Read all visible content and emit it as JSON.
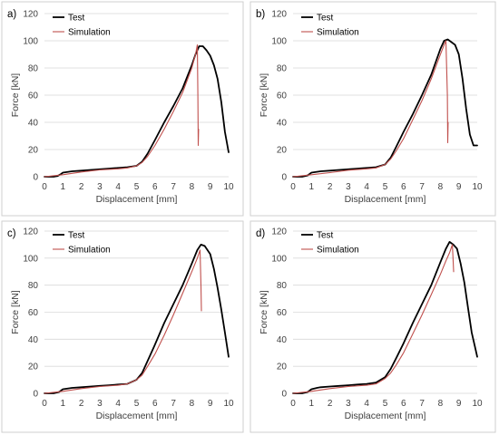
{
  "chart_data": [
    {
      "type": "line",
      "panel_label": "a)",
      "xlabel": "Displacement [mm]",
      "ylabel": "Force [kN]",
      "xlim": [
        0,
        10
      ],
      "ylim": [
        0,
        120
      ],
      "xticks": [
        0,
        1,
        2,
        3,
        4,
        5,
        6,
        7,
        8,
        9,
        10
      ],
      "yticks": [
        0,
        20,
        40,
        60,
        80,
        100,
        120
      ],
      "grid": "horizontal",
      "legend_position": "top-left",
      "series": [
        {
          "name": "Test",
          "color": "#000000",
          "x": [
            0,
            0.5,
            0.7,
            0.9,
            1.0,
            1.5,
            2.0,
            2.5,
            3.0,
            3.5,
            4.0,
            4.5,
            5.0,
            5.3,
            5.6,
            6.0,
            6.5,
            7.0,
            7.5,
            8.0,
            8.2,
            8.4,
            8.6,
            8.8,
            9.0,
            9.2,
            9.4,
            9.6,
            9.8,
            10.0
          ],
          "y": [
            0,
            0,
            0.5,
            2,
            3,
            4,
            4.5,
            5,
            5.5,
            6,
            6.5,
            7,
            8,
            11,
            17,
            27,
            40,
            52,
            65,
            82,
            90,
            96,
            96,
            93,
            89,
            82,
            72,
            55,
            33,
            18
          ]
        },
        {
          "name": "Simulation",
          "color": "#c0504d",
          "x": [
            0,
            1.0,
            2.0,
            3.0,
            4.0,
            4.5,
            5.0,
            5.3,
            5.6,
            6.0,
            6.5,
            7.0,
            7.5,
            8.0,
            8.2,
            8.3,
            8.33,
            8.35,
            8.37
          ],
          "y": [
            0,
            1.5,
            3.5,
            5,
            5.8,
            6.5,
            8,
            10.5,
            15,
            23,
            35,
            48,
            62,
            80,
            90,
            97,
            60,
            23,
            35
          ]
        }
      ]
    },
    {
      "type": "line",
      "panel_label": "b)",
      "xlabel": "Displacement [mm]",
      "ylabel": "Force [kN]",
      "xlim": [
        0,
        10
      ],
      "ylim": [
        0,
        120
      ],
      "xticks": [
        0,
        1,
        2,
        3,
        4,
        5,
        6,
        7,
        8,
        9,
        10
      ],
      "yticks": [
        0,
        20,
        40,
        60,
        80,
        100,
        120
      ],
      "grid": "horizontal",
      "legend_position": "top-left",
      "series": [
        {
          "name": "Test",
          "color": "#000000",
          "x": [
            0,
            0.5,
            0.8,
            1.0,
            1.5,
            2.0,
            2.5,
            3.0,
            3.5,
            4.0,
            4.5,
            5.0,
            5.3,
            5.6,
            6.0,
            6.5,
            7.0,
            7.5,
            8.0,
            8.2,
            8.4,
            8.6,
            8.8,
            9.0,
            9.2,
            9.4,
            9.6,
            9.8,
            10.0
          ],
          "y": [
            0,
            0,
            1,
            3,
            4,
            4.5,
            5,
            5.5,
            6,
            6.5,
            7,
            9,
            14,
            22,
            33,
            46,
            60,
            75,
            94,
            100,
            101,
            99,
            97,
            90,
            72,
            50,
            31,
            23,
            23
          ]
        },
        {
          "name": "Simulation",
          "color": "#c0504d",
          "x": [
            0,
            1.0,
            2.0,
            3.0,
            4.0,
            4.5,
            5.0,
            5.3,
            5.6,
            6.0,
            6.5,
            7.0,
            7.5,
            8.0,
            8.2,
            8.3,
            8.38,
            8.4,
            8.42
          ],
          "y": [
            0,
            1.5,
            3,
            4.8,
            5.8,
            6.5,
            9,
            13,
            19,
            28,
            42,
            56,
            72,
            90,
            97,
            100,
            60,
            25,
            40
          ]
        }
      ]
    },
    {
      "type": "line",
      "panel_label": "c)",
      "xlabel": "Displacement [mm]",
      "ylabel": "Force [kN]",
      "xlim": [
        0,
        10
      ],
      "ylim": [
        0,
        120
      ],
      "xticks": [
        0,
        1,
        2,
        3,
        4,
        5,
        6,
        7,
        8,
        9,
        10
      ],
      "yticks": [
        0,
        20,
        40,
        60,
        80,
        100,
        120
      ],
      "grid": "horizontal",
      "legend_position": "top-left",
      "series": [
        {
          "name": "Test",
          "color": "#000000",
          "x": [
            0,
            0.5,
            0.8,
            1.0,
            1.5,
            2.0,
            2.5,
            3.0,
            3.5,
            4.0,
            4.5,
            5.0,
            5.3,
            5.6,
            6.0,
            6.5,
            7.0,
            7.5,
            8.0,
            8.3,
            8.5,
            8.7,
            9.0,
            9.2,
            9.4,
            9.6,
            9.8,
            10.0
          ],
          "y": [
            0,
            0,
            1,
            3,
            4,
            4.5,
            5,
            5.5,
            6,
            6.5,
            7,
            10,
            15,
            24,
            36,
            52,
            66,
            80,
            96,
            106,
            110,
            109,
            103,
            92,
            78,
            62,
            45,
            27
          ]
        },
        {
          "name": "Simulation",
          "color": "#c0504d",
          "x": [
            0,
            1.0,
            2.0,
            3.0,
            4.0,
            4.5,
            5.0,
            5.3,
            5.6,
            6.0,
            6.5,
            7.0,
            7.5,
            8.0,
            8.3,
            8.45,
            8.5,
            8.52
          ],
          "y": [
            0,
            1.5,
            3.5,
            5,
            6,
            7,
            10,
            13.5,
            20,
            29,
            43,
            58,
            74,
            90,
            100,
            106,
            80,
            61
          ]
        }
      ]
    },
    {
      "type": "line",
      "panel_label": "d)",
      "xlabel": "Displacement [mm]",
      "ylabel": "Force [kN]",
      "xlim": [
        0,
        10
      ],
      "ylim": [
        0,
        120
      ],
      "xticks": [
        0,
        1,
        2,
        3,
        4,
        5,
        6,
        7,
        8,
        9,
        10
      ],
      "yticks": [
        0,
        20,
        40,
        60,
        80,
        100,
        120
      ],
      "grid": "horizontal",
      "legend_position": "top-left",
      "series": [
        {
          "name": "Test",
          "color": "#000000",
          "x": [
            0,
            0.5,
            0.8,
            1.0,
            1.3,
            1.5,
            2.0,
            2.5,
            3.0,
            3.5,
            4.0,
            4.5,
            5.0,
            5.3,
            5.6,
            6.0,
            6.5,
            7.0,
            7.5,
            8.0,
            8.3,
            8.5,
            8.7,
            8.9,
            9.1,
            9.3,
            9.5,
            9.7,
            9.9,
            10.0
          ],
          "y": [
            0,
            0,
            1,
            3,
            4,
            4.5,
            5,
            5.5,
            6,
            6.5,
            7,
            8,
            12,
            18,
            26,
            37,
            52,
            66,
            80,
            97,
            107,
            112,
            110,
            107,
            96,
            82,
            63,
            45,
            33,
            27
          ]
        },
        {
          "name": "Simulation",
          "color": "#c0504d",
          "x": [
            0,
            1.0,
            2.0,
            3.0,
            4.0,
            4.5,
            5.0,
            5.3,
            5.6,
            6.0,
            6.5,
            7.0,
            7.5,
            8.0,
            8.3,
            8.5,
            8.65,
            8.7,
            8.72
          ],
          "y": [
            0,
            1.5,
            3.5,
            5,
            6,
            7,
            11,
            15,
            21,
            30,
            44,
            58,
            73,
            88,
            98,
            104,
            110,
            96,
            90
          ]
        }
      ]
    }
  ]
}
